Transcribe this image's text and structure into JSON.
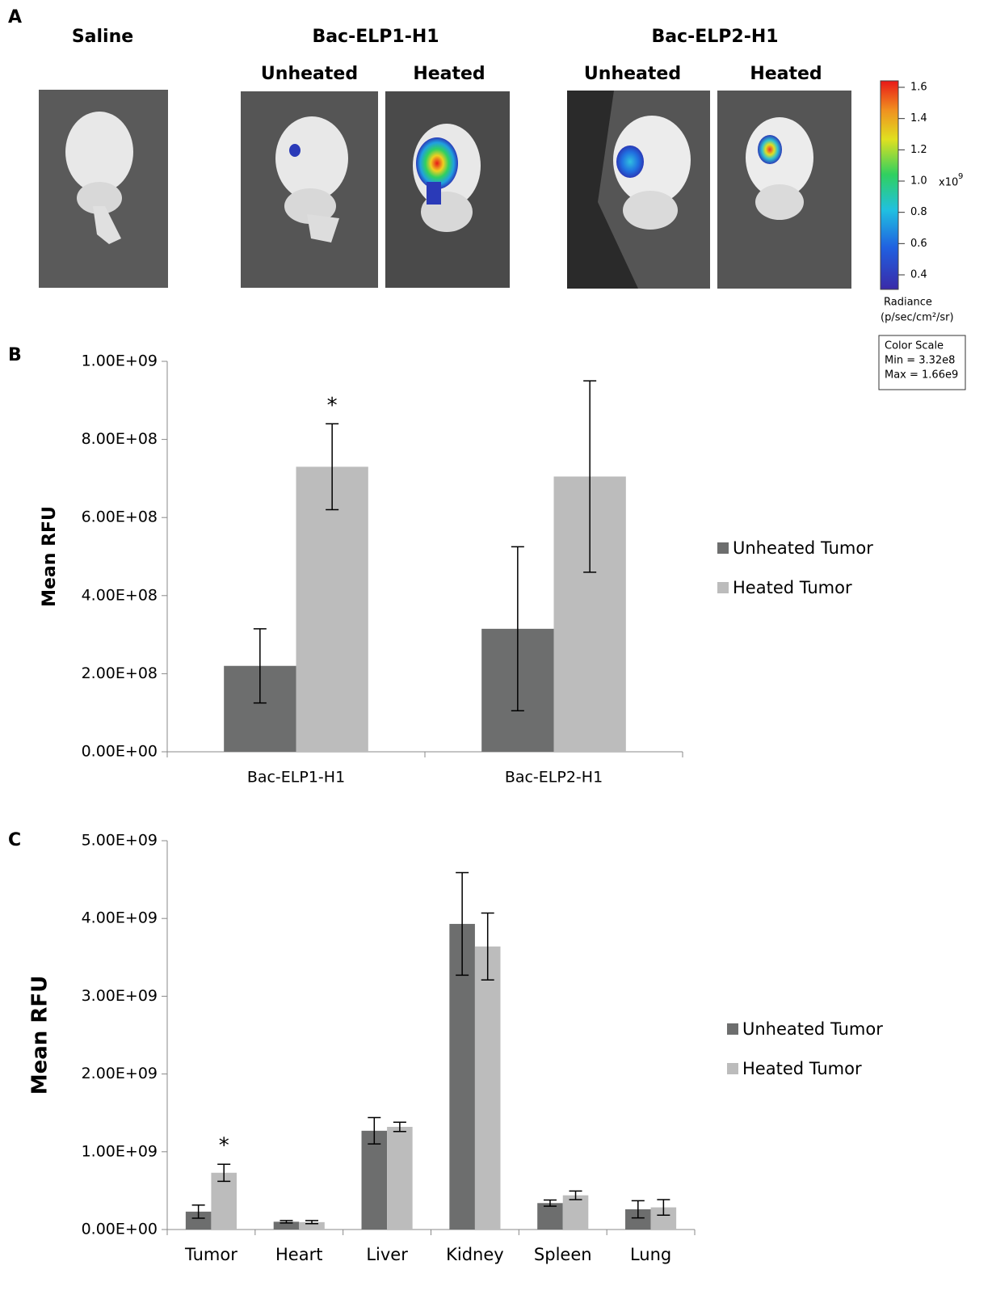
{
  "panel_a": {
    "label": "A",
    "saline": "Saline",
    "group1": {
      "title": "Bac-ELP1-H1",
      "unheated": "Unheated",
      "heated": "Heated"
    },
    "group2": {
      "title": "Bac-ELP2-H1",
      "unheated": "Unheated",
      "heated": "Heated"
    },
    "colorbar": {
      "ticks": [
        "1.6",
        "1.4",
        "1.2",
        "1.0",
        "0.8",
        "0.6",
        "0.4"
      ],
      "multiplier": "x10",
      "exponent": "9",
      "title": "Radiance",
      "units": "(p/sec/cm²/sr)",
      "scale_box": [
        "Color Scale",
        "Min = 3.32e8",
        "Max = 1.66e9"
      ]
    }
  },
  "chart_data": [
    {
      "type": "bar",
      "panel_label": "B",
      "y_label": "Mean RFU",
      "annotation": "*",
      "categories": [
        "Bac-ELP1-H1",
        "Bac-ELP2-H1"
      ],
      "series": [
        {
          "name": "Unheated Tumor",
          "color": "#6d6e6e",
          "values": [
            220000000,
            315000000
          ],
          "errors": [
            95000000,
            210000000
          ]
        },
        {
          "name": "Heated Tumor",
          "color": "#bcbcbc",
          "values": [
            730000000,
            705000000
          ],
          "errors": [
            110000000,
            245000000
          ]
        }
      ],
      "ylim": [
        0,
        1000000000
      ],
      "yticks": [
        {
          "value": 0,
          "label": "0.00E+00"
        },
        {
          "value": 200000000,
          "label": "2.00E+08"
        },
        {
          "value": 400000000,
          "label": "4.00E+08"
        },
        {
          "value": 600000000,
          "label": "6.00E+08"
        },
        {
          "value": 800000000,
          "label": "8.00E+08"
        },
        {
          "value": 1000000000,
          "label": "1.00E+09"
        }
      ],
      "legend": "right"
    },
    {
      "type": "bar",
      "panel_label": "C",
      "y_label": "Mean RFU",
      "annotation": "*",
      "categories": [
        "Tumor",
        "Heart",
        "Liver",
        "Kidney",
        "Spleen",
        "Lung"
      ],
      "series": [
        {
          "name": "Unheated Tumor",
          "color": "#6d6e6e",
          "values": [
            230000000,
            100000000,
            1270000000,
            3930000000,
            340000000,
            260000000
          ],
          "errors": [
            85000000,
            15000000,
            170000000,
            660000000,
            40000000,
            110000000
          ]
        },
        {
          "name": "Heated Tumor",
          "color": "#bcbcbc",
          "values": [
            730000000,
            95000000,
            1320000000,
            3640000000,
            440000000,
            285000000
          ],
          "errors": [
            110000000,
            20000000,
            60000000,
            430000000,
            55000000,
            100000000
          ]
        }
      ],
      "ylim": [
        0,
        5000000000
      ],
      "yticks": [
        {
          "value": 0,
          "label": "0.00E+00"
        },
        {
          "value": 1000000000,
          "label": "1.00E+09"
        },
        {
          "value": 2000000000,
          "label": "2.00E+09"
        },
        {
          "value": 3000000000,
          "label": "3.00E+09"
        },
        {
          "value": 4000000000,
          "label": "4.00E+09"
        },
        {
          "value": 5000000000,
          "label": "5.00E+09"
        }
      ],
      "legend": "right"
    }
  ]
}
